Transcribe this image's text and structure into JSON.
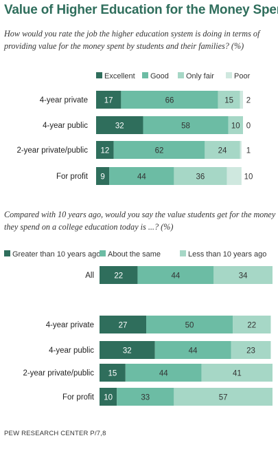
{
  "title": "Value of Higher Education for the Money Spent",
  "source": "PEW RESEARCH CENTER P/7,8",
  "colors": [
    "#2f6e5c",
    "#6cbca4",
    "#a6d7c6",
    "#cfe8df"
  ],
  "chart_data": [
    {
      "type": "bar",
      "orientation": "horizontal",
      "stacked": true,
      "title": "How would you rate the job the higher education system is doing in terms of providing value for the money spent by students and their families? (%)",
      "legend_position": "top",
      "categories": [
        "4-year private",
        "4-year public",
        "2-year private/public",
        "For profit"
      ],
      "series": [
        {
          "name": "Excellent",
          "values": [
            17,
            32,
            12,
            9
          ]
        },
        {
          "name": "Good",
          "values": [
            66,
            58,
            62,
            44
          ]
        },
        {
          "name": "Only fair",
          "values": [
            15,
            10,
            24,
            36
          ]
        },
        {
          "name": "Poor",
          "values": [
            2,
            0,
            1,
            10
          ]
        }
      ],
      "xlim": [
        0,
        100
      ]
    },
    {
      "type": "bar",
      "orientation": "horizontal",
      "stacked": true,
      "title": "Compared with 10 years ago, would you say the value students get for the money they spend on a college education today is ...? (%)",
      "legend_position": "top",
      "categories": [
        "All",
        "4-year private",
        "4-year public",
        "2-year private/public",
        "For profit"
      ],
      "series": [
        {
          "name": "Greater than 10 years ago",
          "values": [
            22,
            27,
            32,
            15,
            10
          ]
        },
        {
          "name": "About the same",
          "values": [
            44,
            50,
            44,
            44,
            33
          ]
        },
        {
          "name": "Less than 10 years ago",
          "values": [
            34,
            22,
            23,
            41,
            57
          ]
        }
      ],
      "xlim": [
        0,
        100
      ]
    }
  ]
}
